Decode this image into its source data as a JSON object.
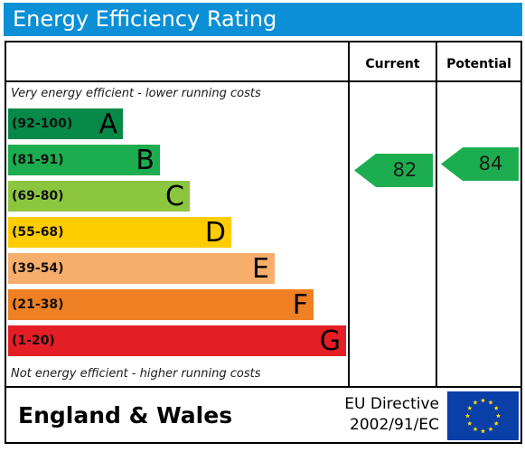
{
  "title": "Energy Efficiency Rating",
  "columns": {
    "current": "Current",
    "potential": "Potential"
  },
  "top_note": "Very energy efficient - lower running costs",
  "bottom_note": "Not energy efficient - higher running costs",
  "bands": [
    {
      "range": "(92-100)",
      "letter": "A",
      "color": "#078a47"
    },
    {
      "range": "(81-91)",
      "letter": "B",
      "color": "#1bad4f"
    },
    {
      "range": "(69-80)",
      "letter": "C",
      "color": "#8cc63f"
    },
    {
      "range": "(55-68)",
      "letter": "D",
      "color": "#ffcc00"
    },
    {
      "range": "(39-54)",
      "letter": "E",
      "color": "#f7ad6b"
    },
    {
      "range": "(21-38)",
      "letter": "F",
      "color": "#ef8023"
    },
    {
      "range": "(1-20)",
      "letter": "G",
      "color": "#e41e25"
    }
  ],
  "current": {
    "value": "82",
    "color": "#1bad4f"
  },
  "potential": {
    "value": "84",
    "color": "#1bad4f"
  },
  "footer": {
    "region": "England & Wales",
    "directive_line1": "EU Directive",
    "directive_line2": "2002/91/EC"
  },
  "colors": {
    "title_bar": "#0b8fd6",
    "eu_flag": "#0b3fa8",
    "eu_stars": "#ffdd00"
  }
}
